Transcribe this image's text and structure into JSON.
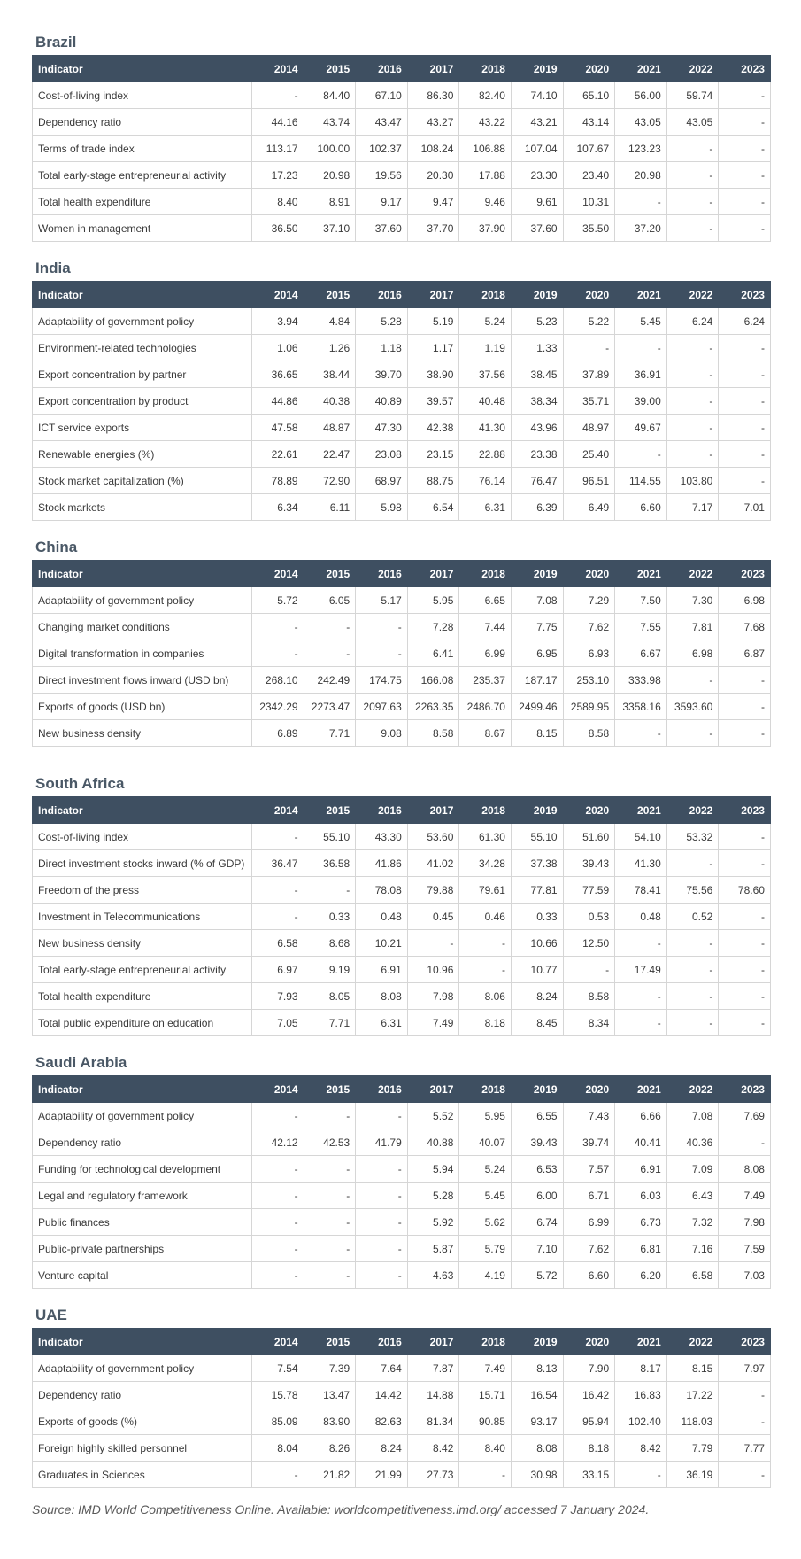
{
  "header": {
    "indicator_label": "Indicator",
    "years": [
      "2014",
      "2015",
      "2016",
      "2017",
      "2018",
      "2019",
      "2020",
      "2021",
      "2022",
      "2023"
    ]
  },
  "sections": [
    {
      "country": "Brazil",
      "rows": [
        {
          "indicator": "Cost-of-living index",
          "values": [
            "-",
            "84.40",
            "67.10",
            "86.30",
            "82.40",
            "74.10",
            "65.10",
            "56.00",
            "59.74",
            "-"
          ]
        },
        {
          "indicator": "Dependency ratio",
          "values": [
            "44.16",
            "43.74",
            "43.47",
            "43.27",
            "43.22",
            "43.21",
            "43.14",
            "43.05",
            "43.05",
            "-"
          ]
        },
        {
          "indicator": "Terms of trade index",
          "values": [
            "113.17",
            "100.00",
            "102.37",
            "108.24",
            "106.88",
            "107.04",
            "107.67",
            "123.23",
            "-",
            "-"
          ]
        },
        {
          "indicator": "Total early-stage entrepreneurial activity",
          "values": [
            "17.23",
            "20.98",
            "19.56",
            "20.30",
            "17.88",
            "23.30",
            "23.40",
            "20.98",
            "-",
            "-"
          ]
        },
        {
          "indicator": "Total health expenditure",
          "values": [
            "8.40",
            "8.91",
            "9.17",
            "9.47",
            "9.46",
            "9.61",
            "10.31",
            "-",
            "-",
            "-"
          ]
        },
        {
          "indicator": "Women in management",
          "values": [
            "36.50",
            "37.10",
            "37.60",
            "37.70",
            "37.90",
            "37.60",
            "35.50",
            "37.20",
            "-",
            "-"
          ]
        }
      ]
    },
    {
      "country": "India",
      "rows": [
        {
          "indicator": "Adaptability of government policy",
          "values": [
            "3.94",
            "4.84",
            "5.28",
            "5.19",
            "5.24",
            "5.23",
            "5.22",
            "5.45",
            "6.24",
            "6.24"
          ]
        },
        {
          "indicator": "Environment-related technologies",
          "values": [
            "1.06",
            "1.26",
            "1.18",
            "1.17",
            "1.19",
            "1.33",
            "-",
            "-",
            "-",
            "-"
          ]
        },
        {
          "indicator": "Export concentration by partner",
          "values": [
            "36.65",
            "38.44",
            "39.70",
            "38.90",
            "37.56",
            "38.45",
            "37.89",
            "36.91",
            "-",
            "-"
          ]
        },
        {
          "indicator": "Export concentration by product",
          "values": [
            "44.86",
            "40.38",
            "40.89",
            "39.57",
            "40.48",
            "38.34",
            "35.71",
            "39.00",
            "-",
            "-"
          ]
        },
        {
          "indicator": "ICT service exports",
          "values": [
            "47.58",
            "48.87",
            "47.30",
            "42.38",
            "41.30",
            "43.96",
            "48.97",
            "49.67",
            "-",
            "-"
          ]
        },
        {
          "indicator": "Renewable energies (%)",
          "values": [
            "22.61",
            "22.47",
            "23.08",
            "23.15",
            "22.88",
            "23.38",
            "25.40",
            "-",
            "-",
            "-"
          ]
        },
        {
          "indicator": "Stock market capitalization (%)",
          "values": [
            "78.89",
            "72.90",
            "68.97",
            "88.75",
            "76.14",
            "76.47",
            "96.51",
            "114.55",
            "103.80",
            "-"
          ]
        },
        {
          "indicator": "Stock markets",
          "values": [
            "6.34",
            "6.11",
            "5.98",
            "6.54",
            "6.31",
            "6.39",
            "6.49",
            "6.60",
            "7.17",
            "7.01"
          ]
        }
      ]
    },
    {
      "country": "China",
      "rows": [
        {
          "indicator": "Adaptability of government policy",
          "values": [
            "5.72",
            "6.05",
            "5.17",
            "5.95",
            "6.65",
            "7.08",
            "7.29",
            "7.50",
            "7.30",
            "6.98"
          ]
        },
        {
          "indicator": "Changing market conditions",
          "values": [
            "-",
            "-",
            "-",
            "7.28",
            "7.44",
            "7.75",
            "7.62",
            "7.55",
            "7.81",
            "7.68"
          ]
        },
        {
          "indicator": "Digital transformation in companies",
          "values": [
            "-",
            "-",
            "-",
            "6.41",
            "6.99",
            "6.95",
            "6.93",
            "6.67",
            "6.98",
            "6.87"
          ]
        },
        {
          "indicator": "Direct investment flows inward (USD bn)",
          "values": [
            "268.10",
            "242.49",
            "174.75",
            "166.08",
            "235.37",
            "187.17",
            "253.10",
            "333.98",
            "-",
            "-"
          ]
        },
        {
          "indicator": "Exports of goods (USD bn)",
          "values": [
            "2342.29",
            "2273.47",
            "2097.63",
            "2263.35",
            "2486.70",
            "2499.46",
            "2589.95",
            "3358.16",
            "3593.60",
            "-"
          ]
        },
        {
          "indicator": "New business density",
          "values": [
            "6.89",
            "7.71",
            "9.08",
            "8.58",
            "8.67",
            "8.15",
            "8.58",
            "-",
            "-",
            "-"
          ]
        }
      ]
    },
    {
      "country": "South Africa",
      "rows": [
        {
          "indicator": "Cost-of-living index",
          "values": [
            "-",
            "55.10",
            "43.30",
            "53.60",
            "61.30",
            "55.10",
            "51.60",
            "54.10",
            "53.32",
            "-"
          ]
        },
        {
          "indicator": "Direct investment stocks inward (% of GDP)",
          "values": [
            "36.47",
            "36.58",
            "41.86",
            "41.02",
            "34.28",
            "37.38",
            "39.43",
            "41.30",
            "-",
            "-"
          ]
        },
        {
          "indicator": "Freedom of the press",
          "values": [
            "-",
            "-",
            "78.08",
            "79.88",
            "79.61",
            "77.81",
            "77.59",
            "78.41",
            "75.56",
            "78.60"
          ]
        },
        {
          "indicator": "Investment in Telecommunications",
          "values": [
            "-",
            "0.33",
            "0.48",
            "0.45",
            "0.46",
            "0.33",
            "0.53",
            "0.48",
            "0.52",
            "-"
          ]
        },
        {
          "indicator": "New business density",
          "values": [
            "6.58",
            "8.68",
            "10.21",
            "-",
            "-",
            "10.66",
            "12.50",
            "-",
            "-",
            "-"
          ]
        },
        {
          "indicator": "Total early-stage entrepreneurial activity",
          "values": [
            "6.97",
            "9.19",
            "6.91",
            "10.96",
            "-",
            "10.77",
            "-",
            "17.49",
            "-",
            "-"
          ]
        },
        {
          "indicator": "Total health expenditure",
          "values": [
            "7.93",
            "8.05",
            "8.08",
            "7.98",
            "8.06",
            "8.24",
            "8.58",
            "-",
            "-",
            "-"
          ]
        },
        {
          "indicator": "Total public expenditure on education",
          "values": [
            "7.05",
            "7.71",
            "6.31",
            "7.49",
            "8.18",
            "8.45",
            "8.34",
            "-",
            "-",
            "-"
          ]
        }
      ]
    },
    {
      "country": "Saudi Arabia",
      "rows": [
        {
          "indicator": "Adaptability of government policy",
          "values": [
            "-",
            "-",
            "-",
            "5.52",
            "5.95",
            "6.55",
            "7.43",
            "6.66",
            "7.08",
            "7.69"
          ]
        },
        {
          "indicator": "Dependency ratio",
          "values": [
            "42.12",
            "42.53",
            "41.79",
            "40.88",
            "40.07",
            "39.43",
            "39.74",
            "40.41",
            "40.36",
            "-"
          ]
        },
        {
          "indicator": "Funding for technological development",
          "values": [
            "-",
            "-",
            "-",
            "5.94",
            "5.24",
            "6.53",
            "7.57",
            "6.91",
            "7.09",
            "8.08"
          ]
        },
        {
          "indicator": "Legal and regulatory framework",
          "values": [
            "-",
            "-",
            "-",
            "5.28",
            "5.45",
            "6.00",
            "6.71",
            "6.03",
            "6.43",
            "7.49"
          ]
        },
        {
          "indicator": "Public finances",
          "values": [
            "-",
            "-",
            "-",
            "5.92",
            "5.62",
            "6.74",
            "6.99",
            "6.73",
            "7.32",
            "7.98"
          ]
        },
        {
          "indicator": "Public-private partnerships",
          "values": [
            "-",
            "-",
            "-",
            "5.87",
            "5.79",
            "7.10",
            "7.62",
            "6.81",
            "7.16",
            "7.59"
          ]
        },
        {
          "indicator": "Venture capital",
          "values": [
            "-",
            "-",
            "-",
            "4.63",
            "4.19",
            "5.72",
            "6.60",
            "6.20",
            "6.58",
            "7.03"
          ]
        }
      ]
    },
    {
      "country": "UAE",
      "rows": [
        {
          "indicator": "Adaptability of government policy",
          "values": [
            "7.54",
            "7.39",
            "7.64",
            "7.87",
            "7.49",
            "8.13",
            "7.90",
            "8.17",
            "8.15",
            "7.97"
          ]
        },
        {
          "indicator": "Dependency ratio",
          "values": [
            "15.78",
            "13.47",
            "14.42",
            "14.88",
            "15.71",
            "16.54",
            "16.42",
            "16.83",
            "17.22",
            "-"
          ]
        },
        {
          "indicator": "Exports of goods (%)",
          "values": [
            "85.09",
            "83.90",
            "82.63",
            "81.34",
            "90.85",
            "93.17",
            "95.94",
            "102.40",
            "118.03",
            "-"
          ]
        },
        {
          "indicator": "Foreign highly skilled personnel",
          "values": [
            "8.04",
            "8.26",
            "8.24",
            "8.42",
            "8.40",
            "8.08",
            "8.18",
            "8.42",
            "7.79",
            "7.77"
          ]
        },
        {
          "indicator": "Graduates in Sciences",
          "values": [
            "-",
            "21.82",
            "21.99",
            "27.73",
            "-",
            "30.98",
            "33.15",
            "-",
            "36.19",
            "-"
          ]
        }
      ]
    }
  ],
  "source": "Source: IMD World Competitiveness Online. Available: worldcompetitiveness.imd.org/ accessed 7 January 2024.",
  "colors": {
    "header_bg": "#3e4f61",
    "header_text": "#ffffff",
    "title_text": "#4a5866",
    "border": "#d6d6d6"
  }
}
